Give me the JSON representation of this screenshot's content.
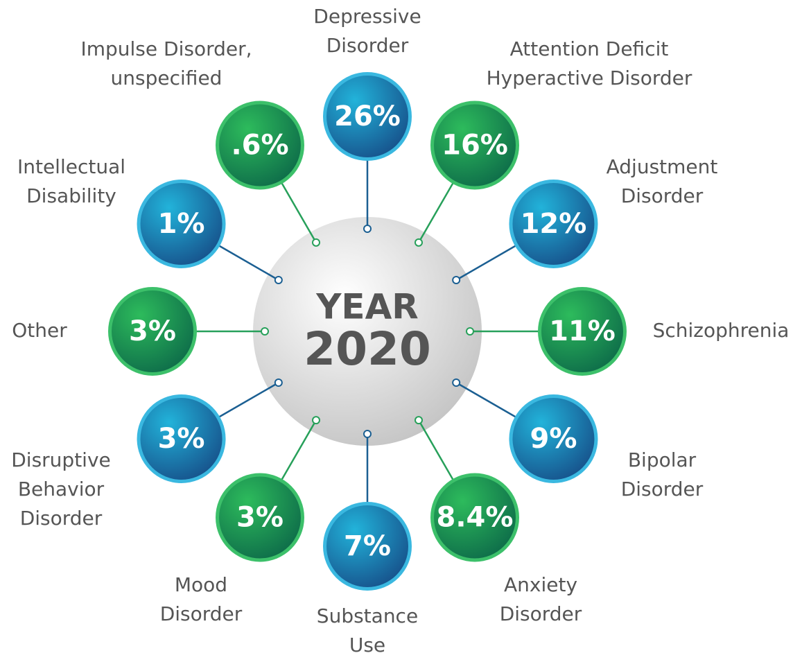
{
  "center": {
    "lines": [
      "YEAR",
      "2020"
    ]
  },
  "nodes": [
    {
      "label": [
        "Depressive",
        "Disorder"
      ],
      "value": "26%"
    },
    {
      "label": [
        "Attention Deficit",
        "Hyperactive Disorder"
      ],
      "value": "16%"
    },
    {
      "label": [
        "Adjustment",
        "Disorder"
      ],
      "value": "12%"
    },
    {
      "label": [
        "Schizophrenia"
      ],
      "value": "11%"
    },
    {
      "label": [
        "Bipolar",
        "Disorder"
      ],
      "value": "9%"
    },
    {
      "label": [
        "Anxiety",
        "Disorder"
      ],
      "value": "8.4%"
    },
    {
      "label": [
        "Substance",
        "Use"
      ],
      "value": "7%"
    },
    {
      "label": [
        "Mood",
        "Disorder"
      ],
      "value": "3%"
    },
    {
      "label": [
        "Disruptive",
        "Behavior",
        "Disorder"
      ],
      "value": "3%"
    },
    {
      "label": [
        "Other"
      ],
      "value": "3%"
    },
    {
      "label": [
        "Intellectual",
        "Disability"
      ],
      "value": "1%"
    },
    {
      "label": [
        "Impulse Disorder,",
        "unspecified"
      ],
      "value": ".6%"
    }
  ]
}
